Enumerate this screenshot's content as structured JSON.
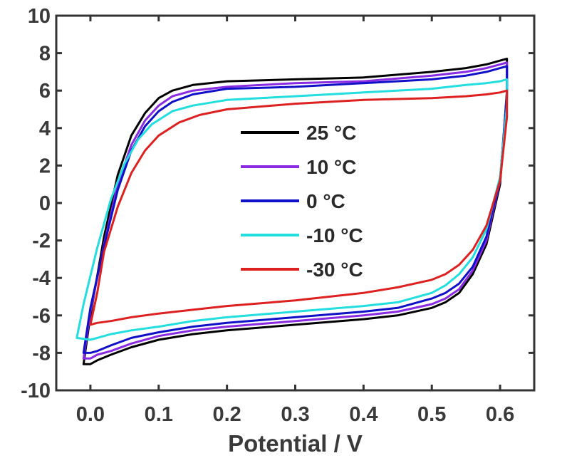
{
  "chart_data": {
    "type": "line",
    "title": "",
    "xlabel": "Potential / V",
    "ylabel": "",
    "xlim": [
      -0.05,
      0.65
    ],
    "ylim": [
      -10,
      10
    ],
    "xticks": [
      0.0,
      0.1,
      0.2,
      0.3,
      0.4,
      0.5,
      0.6
    ],
    "xtick_labels": [
      "0.0",
      "0.1",
      "0.2",
      "0.3",
      "0.4",
      "0.5",
      "0.6"
    ],
    "yticks": [
      10,
      8,
      6,
      4,
      2,
      0,
      -2,
      -4,
      -6,
      -8,
      -10
    ],
    "ytick_labels": [
      "10",
      "8",
      "6",
      "4",
      "2",
      "0",
      "-2",
      "-4",
      "-6",
      "-8",
      "-10"
    ],
    "grid": false,
    "legend_position": "center",
    "series": [
      {
        "name": "25 °C",
        "color": "#000000",
        "x": [
          -0.01,
          0.0,
          0.02,
          0.04,
          0.06,
          0.08,
          0.1,
          0.12,
          0.15,
          0.2,
          0.3,
          0.4,
          0.5,
          0.55,
          0.58,
          0.6,
          0.61,
          0.61,
          0.6,
          0.58,
          0.56,
          0.54,
          0.52,
          0.5,
          0.45,
          0.4,
          0.3,
          0.2,
          0.15,
          0.1,
          0.06,
          0.03,
          0.01,
          0.0,
          -0.01
        ],
        "y": [
          -8.6,
          -6.0,
          -1.8,
          1.5,
          3.6,
          4.8,
          5.6,
          6.0,
          6.3,
          6.5,
          6.6,
          6.7,
          7.0,
          7.2,
          7.4,
          7.6,
          7.7,
          6.0,
          1.0,
          -2.2,
          -3.8,
          -4.8,
          -5.3,
          -5.6,
          -6.0,
          -6.2,
          -6.5,
          -6.8,
          -7.0,
          -7.3,
          -7.7,
          -8.1,
          -8.4,
          -8.6,
          -8.6
        ]
      },
      {
        "name": "10 °C",
        "color": "#8a2be2",
        "x": [
          -0.01,
          0.0,
          0.02,
          0.04,
          0.06,
          0.08,
          0.1,
          0.12,
          0.15,
          0.2,
          0.3,
          0.4,
          0.5,
          0.55,
          0.58,
          0.6,
          0.61,
          0.61,
          0.6,
          0.58,
          0.56,
          0.54,
          0.52,
          0.5,
          0.45,
          0.4,
          0.3,
          0.2,
          0.15,
          0.1,
          0.06,
          0.03,
          0.01,
          0.0,
          -0.01
        ],
        "y": [
          -8.3,
          -5.8,
          -2.2,
          1.0,
          3.1,
          4.4,
          5.2,
          5.7,
          6.0,
          6.2,
          6.4,
          6.5,
          6.8,
          7.0,
          7.2,
          7.4,
          7.5,
          5.8,
          1.2,
          -2.0,
          -3.6,
          -4.6,
          -5.1,
          -5.4,
          -5.8,
          -6.0,
          -6.3,
          -6.6,
          -6.8,
          -7.1,
          -7.5,
          -7.9,
          -8.1,
          -8.3,
          -8.3
        ]
      },
      {
        "name": "0 °C",
        "color": "#1010c8",
        "x": [
          -0.01,
          0.0,
          0.02,
          0.04,
          0.06,
          0.08,
          0.1,
          0.12,
          0.15,
          0.2,
          0.3,
          0.4,
          0.5,
          0.55,
          0.58,
          0.6,
          0.61,
          0.61,
          0.6,
          0.58,
          0.56,
          0.54,
          0.52,
          0.5,
          0.45,
          0.4,
          0.3,
          0.2,
          0.15,
          0.1,
          0.06,
          0.03,
          0.01,
          0.0,
          -0.01
        ],
        "y": [
          -8.0,
          -5.6,
          -2.3,
          0.7,
          2.8,
          4.1,
          4.9,
          5.4,
          5.8,
          6.1,
          6.2,
          6.4,
          6.6,
          6.8,
          7.0,
          7.2,
          7.3,
          5.6,
          1.3,
          -1.8,
          -3.4,
          -4.3,
          -4.8,
          -5.1,
          -5.6,
          -5.8,
          -6.1,
          -6.4,
          -6.6,
          -6.9,
          -7.2,
          -7.6,
          -7.9,
          -8.0,
          -8.0
        ]
      },
      {
        "name": "-10 °C",
        "color": "#22dede",
        "x": [
          -0.02,
          -0.01,
          0.01,
          0.03,
          0.05,
          0.07,
          0.09,
          0.12,
          0.15,
          0.2,
          0.3,
          0.4,
          0.5,
          0.55,
          0.58,
          0.6,
          0.61,
          0.61,
          0.6,
          0.58,
          0.56,
          0.54,
          0.52,
          0.5,
          0.45,
          0.4,
          0.3,
          0.2,
          0.15,
          0.1,
          0.06,
          0.03,
          0.01,
          0.0,
          -0.02
        ],
        "y": [
          -7.2,
          -5.4,
          -2.4,
          0.2,
          2.1,
          3.4,
          4.2,
          4.9,
          5.2,
          5.5,
          5.7,
          5.9,
          6.1,
          6.3,
          6.4,
          6.5,
          6.6,
          5.2,
          1.4,
          -1.4,
          -2.9,
          -3.8,
          -4.4,
          -4.8,
          -5.3,
          -5.5,
          -5.8,
          -6.1,
          -6.3,
          -6.6,
          -6.8,
          -7.0,
          -7.2,
          -7.3,
          -7.2
        ]
      },
      {
        "name": "-30 °C",
        "color": "#dd2020",
        "x": [
          0.0,
          0.01,
          0.02,
          0.04,
          0.06,
          0.08,
          0.1,
          0.13,
          0.16,
          0.2,
          0.3,
          0.4,
          0.5,
          0.55,
          0.58,
          0.6,
          0.61,
          0.61,
          0.6,
          0.58,
          0.56,
          0.54,
          0.52,
          0.5,
          0.45,
          0.4,
          0.3,
          0.2,
          0.15,
          0.1,
          0.06,
          0.03,
          0.01,
          0.0
        ],
        "y": [
          -6.5,
          -4.8,
          -2.6,
          -0.2,
          1.6,
          2.8,
          3.6,
          4.3,
          4.7,
          5.0,
          5.3,
          5.5,
          5.6,
          5.7,
          5.8,
          5.9,
          6.0,
          4.6,
          1.2,
          -1.2,
          -2.5,
          -3.3,
          -3.8,
          -4.1,
          -4.5,
          -4.8,
          -5.2,
          -5.5,
          -5.7,
          -5.9,
          -6.1,
          -6.3,
          -6.4,
          -6.5
        ]
      }
    ]
  }
}
